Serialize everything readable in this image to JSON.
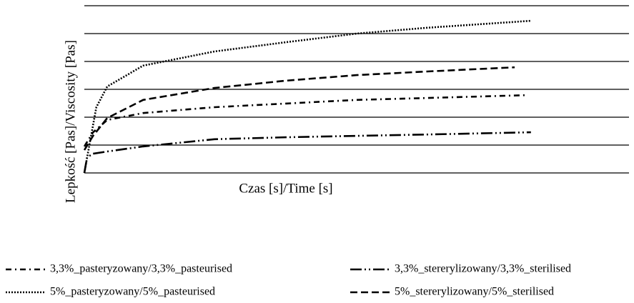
{
  "chart_data": {
    "type": "line",
    "x_label": "Czas [s]/Time [s]",
    "y_label": "Lepkość [Pas]/Viscosity [Pas]",
    "xlim": [
      0,
      100
    ],
    "ylim": [
      0,
      6
    ],
    "yticks": [
      0,
      1,
      2,
      3,
      4,
      5,
      6
    ],
    "grid": true,
    "series": [
      {
        "name": "3,3%_pasteryzowany/3,3%_pasteurised",
        "color": "#000000",
        "dash": "8,5,2,5",
        "x": [
          0,
          1.6,
          4.2,
          10.8,
          23.9,
          37,
          50,
          63,
          81
        ],
        "values": [
          0.95,
          1.46,
          1.9,
          2.15,
          2.36,
          2.49,
          2.62,
          2.69,
          2.79
        ]
      },
      {
        "name": "3,3%_stererylizowany/3,3%_sterilised",
        "color": "#000000",
        "dash": "16,4,2,4,2,4",
        "x": [
          0,
          0.5,
          1.6,
          4.2,
          10.8,
          23.9,
          37,
          50,
          63,
          82
        ],
        "values": [
          0,
          0.56,
          0.69,
          0.77,
          0.95,
          1.21,
          1.28,
          1.33,
          1.38,
          1.46
        ]
      },
      {
        "name": "5%_pasteryzowany/5%_pasteurised",
        "color": "#000000",
        "dash": "2,2",
        "x": [
          0,
          1,
          2.2,
          4.2,
          10.8,
          23.9,
          37,
          50,
          63,
          82
        ],
        "values": [
          0,
          1.08,
          2.36,
          3.1,
          3.85,
          4.36,
          4.69,
          5.0,
          5.21,
          5.46
        ]
      },
      {
        "name": "5%_stererylizowany/5%_sterilised",
        "color": "#000000",
        "dash": "10,5",
        "x": [
          0,
          1.6,
          4.2,
          10.8,
          23.9,
          37,
          50,
          63,
          79
        ],
        "values": [
          0.82,
          1.33,
          1.97,
          2.62,
          3.05,
          3.31,
          3.51,
          3.64,
          3.79
        ]
      }
    ]
  }
}
